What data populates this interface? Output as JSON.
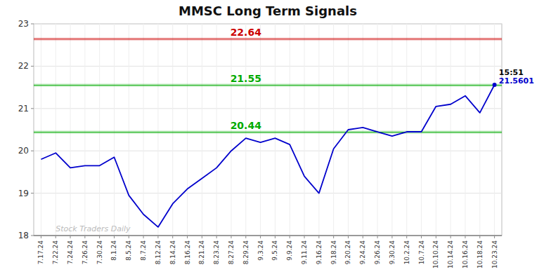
{
  "chart_data": {
    "type": "line",
    "title": "MMSC Long Term Signals",
    "categories": [
      "7.17.24",
      "7.22.24",
      "7.24.24",
      "7.26.24",
      "7.30.24",
      "8.1.24",
      "8.5.24",
      "8.7.24",
      "8.12.24",
      "8.14.24",
      "8.16.24",
      "8.21.24",
      "8.23.24",
      "8.27.24",
      "8.29.24",
      "9.3.24",
      "9.5.24",
      "9.9.24",
      "9.11.24",
      "9.16.24",
      "9.18.24",
      "9.20.24",
      "9.24.24",
      "9.26.24",
      "9.30.24",
      "10.2.24",
      "10.7.24",
      "10.10.24",
      "10.14.24",
      "10.16.24",
      "10.18.24",
      "10.23.24"
    ],
    "values": [
      19.8,
      19.95,
      19.6,
      19.65,
      19.65,
      19.85,
      18.95,
      18.5,
      18.2,
      18.75,
      19.1,
      19.35,
      19.6,
      20.0,
      20.3,
      20.2,
      20.3,
      20.15,
      19.4,
      19.0,
      20.05,
      20.5,
      20.55,
      20.45,
      20.35,
      20.45,
      20.45,
      21.05,
      21.1,
      21.3,
      20.9,
      21.56
    ],
    "color": "#0000cc",
    "ylim": [
      18.0,
      23.0
    ],
    "yticks": [
      18,
      19,
      20,
      21,
      22,
      23
    ],
    "grid": true,
    "hlines": [
      {
        "value": 22.64,
        "label": "22.64",
        "color": "#cc0000"
      },
      {
        "value": 21.55,
        "label": "21.55",
        "color": "#00aa00"
      },
      {
        "value": 20.44,
        "label": "20.44",
        "color": "#00aa00"
      }
    ],
    "annotations": [
      {
        "text": "15:51",
        "color": "#000000"
      },
      {
        "text": "21.5601",
        "color": "#0000cc"
      },
      {
        "text": "Stock Traders Daily",
        "color": "#bbbbbb"
      }
    ]
  }
}
